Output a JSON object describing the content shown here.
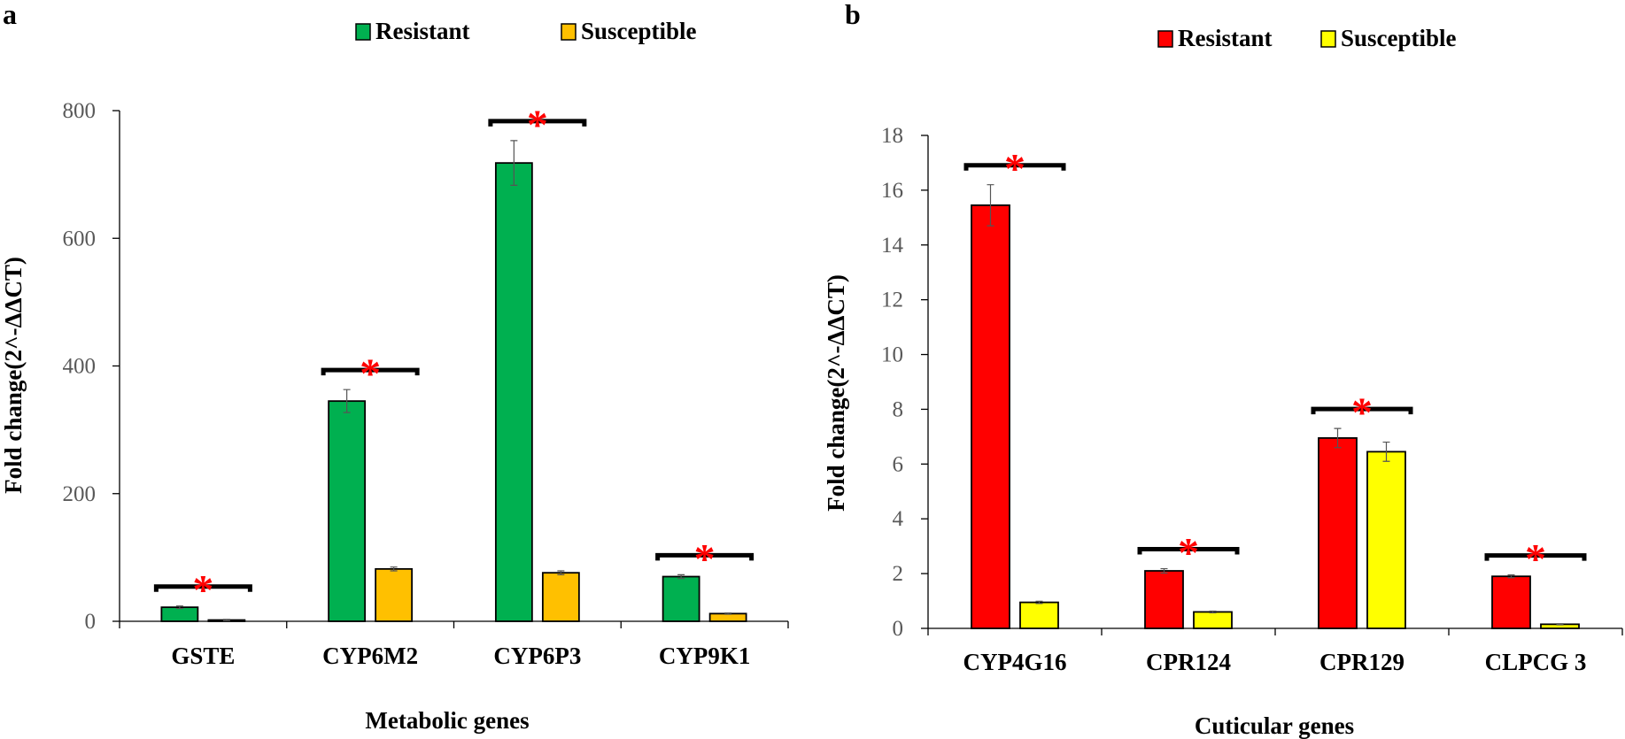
{
  "chart_data": [
    {
      "panel": "a",
      "type": "bar",
      "categories": [
        "GSTE",
        "CYP6M2",
        "CYP6P3",
        "CYP9K1"
      ],
      "series": [
        {
          "name": "Resistant",
          "color": "#00b050",
          "values": [
            22,
            345,
            718,
            70
          ],
          "errors": [
            2,
            18,
            35,
            3
          ]
        },
        {
          "name": "Susceptible",
          "color": "#ffc000",
          "values": [
            2,
            82,
            76,
            12
          ],
          "errors": [
            1,
            3,
            3,
            1
          ]
        }
      ],
      "significant": [
        true,
        true,
        true,
        true
      ],
      "significance_marker": "*",
      "xlabel": "Metabolic genes",
      "ylabel": "Fold change(2^-ΔΔCT)",
      "ylim": [
        0,
        800
      ],
      "yticks": [
        0,
        200,
        400,
        600,
        800
      ],
      "legend_position": "top"
    },
    {
      "panel": "b",
      "type": "bar",
      "categories": [
        "CYP4G16",
        "CPR124",
        "CPR129",
        "CLPCG 3"
      ],
      "series": [
        {
          "name": "Resistant",
          "color": "#ff0000",
          "values": [
            15.45,
            2.1,
            6.95,
            1.9
          ],
          "errors": [
            0.75,
            0.08,
            0.35,
            0.05
          ]
        },
        {
          "name": "Susceptible",
          "color": "#ffff00",
          "values": [
            0.95,
            0.6,
            6.45,
            0.15
          ],
          "errors": [
            0.04,
            0.03,
            0.35,
            0.02
          ]
        }
      ],
      "significant": [
        true,
        true,
        true,
        true
      ],
      "significance_marker": "*",
      "xlabel": "Cuticular genes",
      "ylabel": "Fold change(2^-ΔΔCT)",
      "ylim": [
        0,
        18
      ],
      "yticks": [
        0,
        2,
        4,
        6,
        8,
        10,
        12,
        14,
        16,
        18
      ],
      "legend_position": "top"
    }
  ]
}
